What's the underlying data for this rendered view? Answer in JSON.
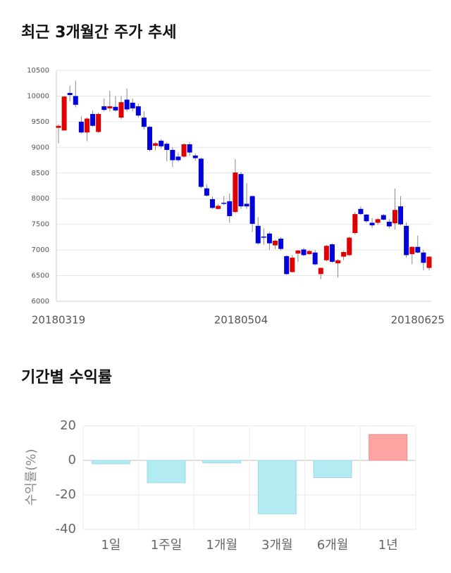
{
  "chart_data": [
    {
      "type": "candlestick",
      "title": "최근 3개월간 주가 추세",
      "categories": [
        "20180319",
        null,
        null,
        null,
        null,
        null,
        null,
        null,
        null,
        null,
        null,
        null,
        null,
        null,
        null,
        null,
        null,
        null,
        null,
        null,
        null,
        null,
        null,
        null,
        null,
        null,
        null,
        null,
        null,
        null,
        null,
        null,
        "20180504",
        null,
        null,
        null,
        null,
        null,
        null,
        null,
        null,
        null,
        null,
        null,
        null,
        null,
        null,
        null,
        null,
        null,
        null,
        null,
        null,
        null,
        null,
        null,
        null,
        null,
        null,
        null,
        null,
        null,
        null,
        "20180625",
        null,
        null
      ],
      "open": [
        9380,
        9330,
        10060,
        10000,
        9500,
        9290,
        9650,
        9300,
        9800,
        9760,
        9790,
        9580,
        9930,
        9870,
        9800,
        9580,
        9400,
        9030,
        9130,
        9070,
        8950,
        8820,
        8820,
        9060,
        8840,
        8780,
        8200,
        7990,
        7800,
        7920,
        7950,
        7740,
        8480,
        7900,
        8050,
        7470,
        7260,
        7320,
        7090,
        7220,
        6880,
        6570,
        6930,
        7010,
        6920,
        6950,
        6530,
        6800,
        7110,
        6740,
        6870,
        6900,
        7330,
        7800,
        7690,
        7530,
        7530,
        7680,
        7550,
        7520,
        7850,
        7470,
        6920,
        7060,
        6950,
        6650
      ],
      "high": [
        9450,
        10000,
        10200,
        10300,
        9600,
        9580,
        9720,
        9680,
        9950,
        10100,
        10000,
        10000,
        10150,
        9950,
        9850,
        9700,
        9420,
        9100,
        9160,
        9100,
        9000,
        8900,
        9080,
        9100,
        8880,
        8800,
        8280,
        8040,
        7890,
        8050,
        8100,
        8770,
        8520,
        8300,
        8060,
        7640,
        7420,
        7350,
        7200,
        7250,
        6900,
        6900,
        7000,
        7040,
        7000,
        7000,
        6660,
        7100,
        7130,
        6820,
        6980,
        7260,
        7740,
        7850,
        7700,
        7620,
        7620,
        7700,
        7600,
        8200,
        8050,
        7540,
        7070,
        7280,
        7000,
        6880
      ],
      "low": [
        9080,
        9330,
        9900,
        9780,
        9270,
        9120,
        9400,
        9280,
        9700,
        9700,
        9700,
        9550,
        9700,
        9700,
        9580,
        9350,
        8920,
        8940,
        8980,
        8730,
        8620,
        8720,
        8800,
        8830,
        8740,
        8200,
        8040,
        7800,
        7790,
        7870,
        7530,
        7720,
        7800,
        7800,
        7350,
        7100,
        7100,
        7000,
        7020,
        6990,
        6520,
        6560,
        6770,
        6880,
        6900,
        6700,
        6430,
        6780,
        6750,
        6460,
        6800,
        6880,
        7300,
        7680,
        7530,
        7430,
        7490,
        7580,
        7420,
        7400,
        7480,
        6850,
        6720,
        6930,
        6600,
        6600
      ],
      "close": [
        9420,
        9990,
        10020,
        9830,
        9290,
        9560,
        9420,
        9650,
        9730,
        9800,
        9720,
        9880,
        9740,
        9760,
        9620,
        9400,
        8950,
        9080,
        9020,
        8950,
        8750,
        8750,
        9060,
        8900,
        8790,
        8230,
        8060,
        7820,
        7860,
        7900,
        7660,
        8510,
        7850,
        7850,
        7510,
        7130,
        7240,
        7130,
        7180,
        7020,
        6530,
        6850,
        6990,
        6900,
        6980,
        6720,
        6650,
        7080,
        6770,
        6800,
        6960,
        7240,
        7700,
        7700,
        7560,
        7480,
        7600,
        7590,
        7460,
        7780,
        7500,
        6900,
        7060,
        6950,
        6750,
        6870
      ],
      "up_color": "#e00000",
      "down_color": "#0000dd",
      "ylim": [
        6000,
        10500
      ],
      "yticks": [
        6000,
        6500,
        7000,
        7500,
        8000,
        8500,
        9000,
        9500,
        10000,
        10500
      ],
      "grid": true
    },
    {
      "type": "bar",
      "title": "기간별 수익률",
      "y_label": "수익률(%)",
      "categories": [
        "1일",
        "1주일",
        "1개월",
        "3개월",
        "6개월",
        "1년"
      ],
      "values": [
        -2,
        -13,
        -1.5,
        -31,
        -10,
        15
      ],
      "positive_color": "#ffa3a3",
      "negative_color": "#b2ebf2",
      "ylim": [
        -40,
        20
      ],
      "yticks": [
        -40,
        -20,
        0,
        20
      ],
      "grid": true
    }
  ]
}
